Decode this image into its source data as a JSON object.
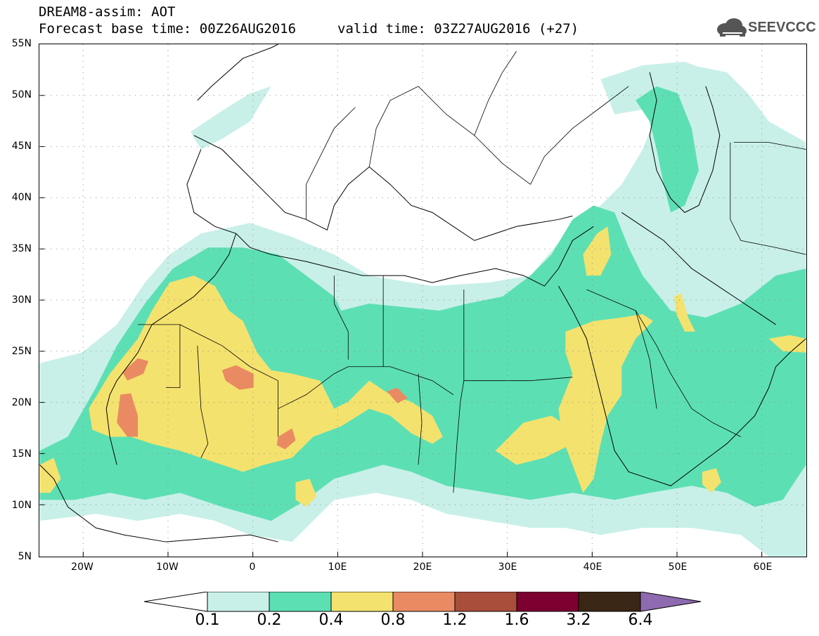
{
  "header": {
    "title_line1": "DREAM8-assim: AOT",
    "title_line2": "Forecast base time: 00Z26AUG2016",
    "valid_time": "valid time: 03Z27AUG2016 (+27)",
    "logo_text": "SEEVCCC"
  },
  "map": {
    "lat_labels": [
      "55N",
      "50N",
      "45N",
      "40N",
      "35N",
      "30N",
      "25N",
      "20N",
      "15N",
      "10N",
      "5N"
    ],
    "lon_labels": [
      "20W",
      "10W",
      "0",
      "10E",
      "20E",
      "30E",
      "40E",
      "50E",
      "60E"
    ]
  },
  "colorbar": {
    "labels": [
      "0.1",
      "0.2",
      "0.4",
      "0.8",
      "1.2",
      "1.6",
      "3.2",
      "6.4"
    ],
    "colors": [
      "#ffffff",
      "#c8f0e8",
      "#5ddfb4",
      "#f4e26e",
      "#ea8a62",
      "#a84e3a",
      "#7c0030",
      "#3a2614",
      "#8e6ab0"
    ]
  }
}
